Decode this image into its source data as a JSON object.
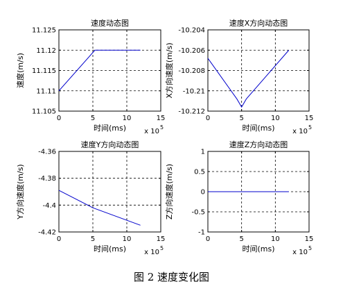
{
  "caption": "图 2  速度变化图",
  "exponent_label": "x 10",
  "exponent_power": "5",
  "line_color": "#0000cc",
  "chart_data": [
    {
      "type": "line",
      "title": "速度动态图",
      "xlabel": "时间(ms)",
      "ylabel": "速度(m/s)",
      "xlim": [
        0,
        15
      ],
      "ylim": [
        11.105,
        11.125
      ],
      "xticks": [
        "0",
        "5",
        "10",
        "15"
      ],
      "yticks": [
        "11.105",
        "11.11",
        "11.115",
        "11.12",
        "11.125"
      ],
      "ytick_values": [
        11.105,
        11.11,
        11.115,
        11.12,
        11.125
      ],
      "grid": true,
      "x": [
        0,
        5.3,
        12
      ],
      "y": [
        11.11,
        11.12,
        11.12
      ]
    },
    {
      "type": "line",
      "title": "速度X方向动态图",
      "xlabel": "时间(ms)",
      "ylabel": "X方向速度(m/s)",
      "xlim": [
        0,
        15
      ],
      "ylim": [
        -10.212,
        -10.204
      ],
      "xticks": [
        "0",
        "5",
        "10",
        "15"
      ],
      "yticks": [
        "-10.212",
        "-10.21",
        "-10.208",
        "-10.206",
        "-10.204"
      ],
      "ytick_values": [
        -10.212,
        -10.21,
        -10.208,
        -10.206,
        -10.204
      ],
      "grid": true,
      "x": [
        0,
        4.3,
        5.0,
        5.7,
        12
      ],
      "y": [
        -10.2068,
        -10.2108,
        -10.2116,
        -10.2108,
        -10.206
      ]
    },
    {
      "type": "line",
      "title": "速度Y方向动态图",
      "xlabel": "时间(ms)",
      "ylabel": "Y方向速度(m/s)",
      "xlim": [
        0,
        15
      ],
      "ylim": [
        -4.42,
        -4.36
      ],
      "xticks": [
        "0",
        "5",
        "10",
        "15"
      ],
      "yticks": [
        "-4.42",
        "-4.4",
        "-4.38",
        "-4.36"
      ],
      "ytick_values": [
        -4.42,
        -4.4,
        -4.38,
        -4.36
      ],
      "grid": true,
      "x": [
        0,
        5,
        12
      ],
      "y": [
        -4.389,
        -4.402,
        -4.415
      ]
    },
    {
      "type": "line",
      "title": "速度Z方向动态图",
      "xlabel": "时间(ms)",
      "ylabel": "Z方向速度(m/s)",
      "xlim": [
        0,
        15
      ],
      "ylim": [
        -1,
        1
      ],
      "xticks": [
        "0",
        "5",
        "10",
        "15"
      ],
      "yticks": [
        "-1",
        "-0.5",
        "0",
        "0.5",
        "1"
      ],
      "ytick_values": [
        -1,
        -0.5,
        0,
        0.5,
        1
      ],
      "grid": true,
      "x": [
        0,
        12
      ],
      "y": [
        0,
        0
      ]
    }
  ]
}
